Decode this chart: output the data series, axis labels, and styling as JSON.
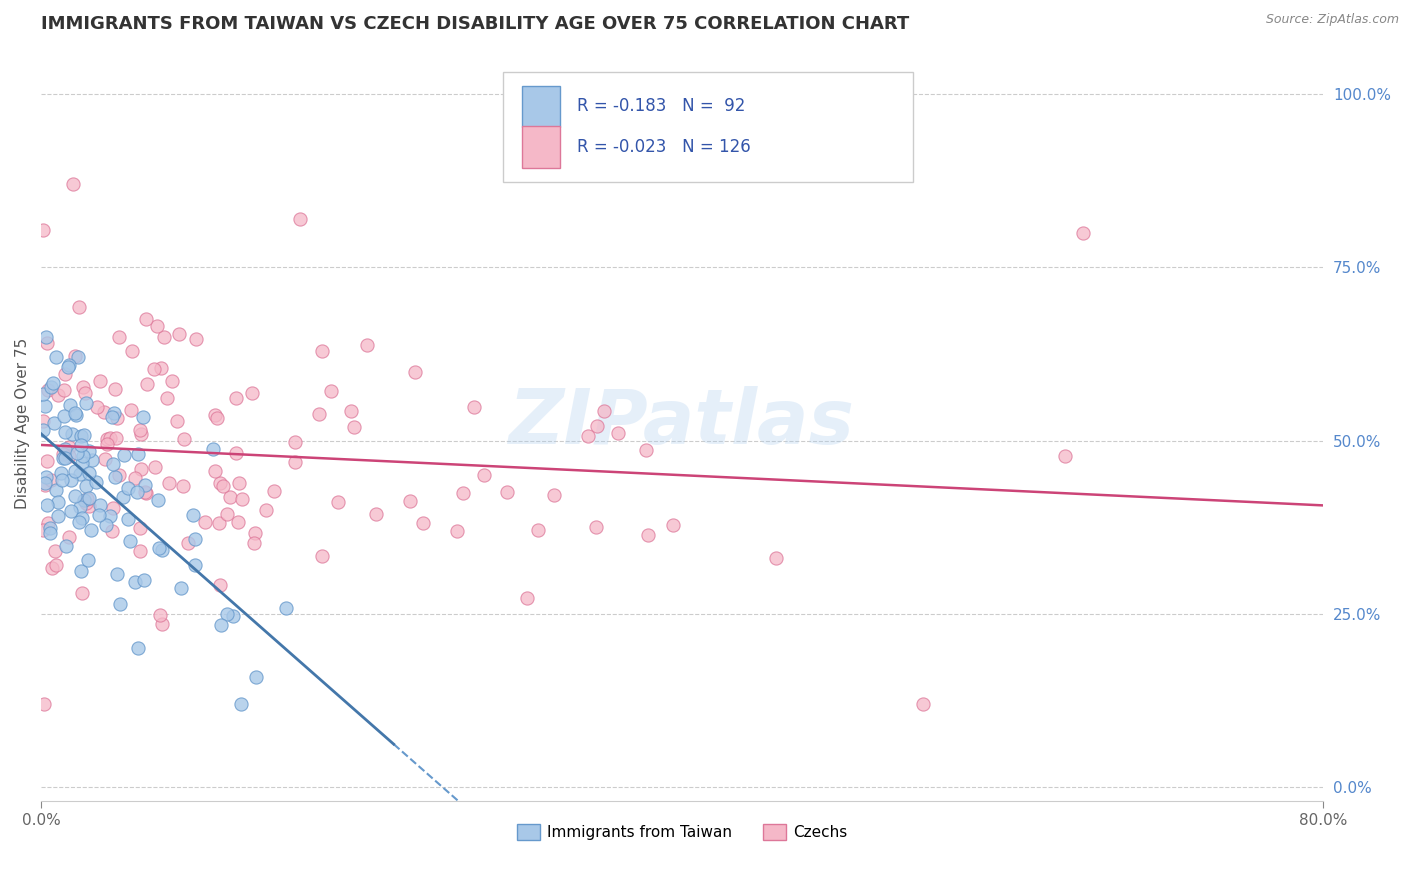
{
  "title": "IMMIGRANTS FROM TAIWAN VS CZECH DISABILITY AGE OVER 75 CORRELATION CHART",
  "source": "Source: ZipAtlas.com",
  "ylabel": "Disability Age Over 75",
  "xlim": [
    0.0,
    0.8
  ],
  "ylim": [
    -0.02,
    1.07
  ],
  "xticks": [
    0.0,
    0.8
  ],
  "xticklabels": [
    "0.0%",
    "80.0%"
  ],
  "yticks_right": [
    0.0,
    0.25,
    0.5,
    0.75,
    1.0
  ],
  "ytick_right_labels": [
    "0.0%",
    "25.0%",
    "50.0%",
    "75.0%",
    "100.0%"
  ],
  "background_color": "#ffffff",
  "grid_color": "#cccccc",
  "title_color": "#333333",
  "title_fontsize": 13,
  "watermark_text": "ZIPatlas",
  "watermark_color": "#aaccee",
  "series1_label": "Immigrants from Taiwan",
  "series1_color": "#a8c8e8",
  "series1_edge": "#6699cc",
  "series1_R": -0.183,
  "series1_N": 92,
  "series1_line_color": "#6699cc",
  "series1_line_solid_color": "#4477aa",
  "series2_label": "Czechs",
  "series2_color": "#f5b8c8",
  "series2_edge": "#dd7799",
  "series2_R": -0.023,
  "series2_N": 126,
  "series2_line_color": "#cc4477",
  "legend_color": "#3355aa",
  "seed": 7
}
